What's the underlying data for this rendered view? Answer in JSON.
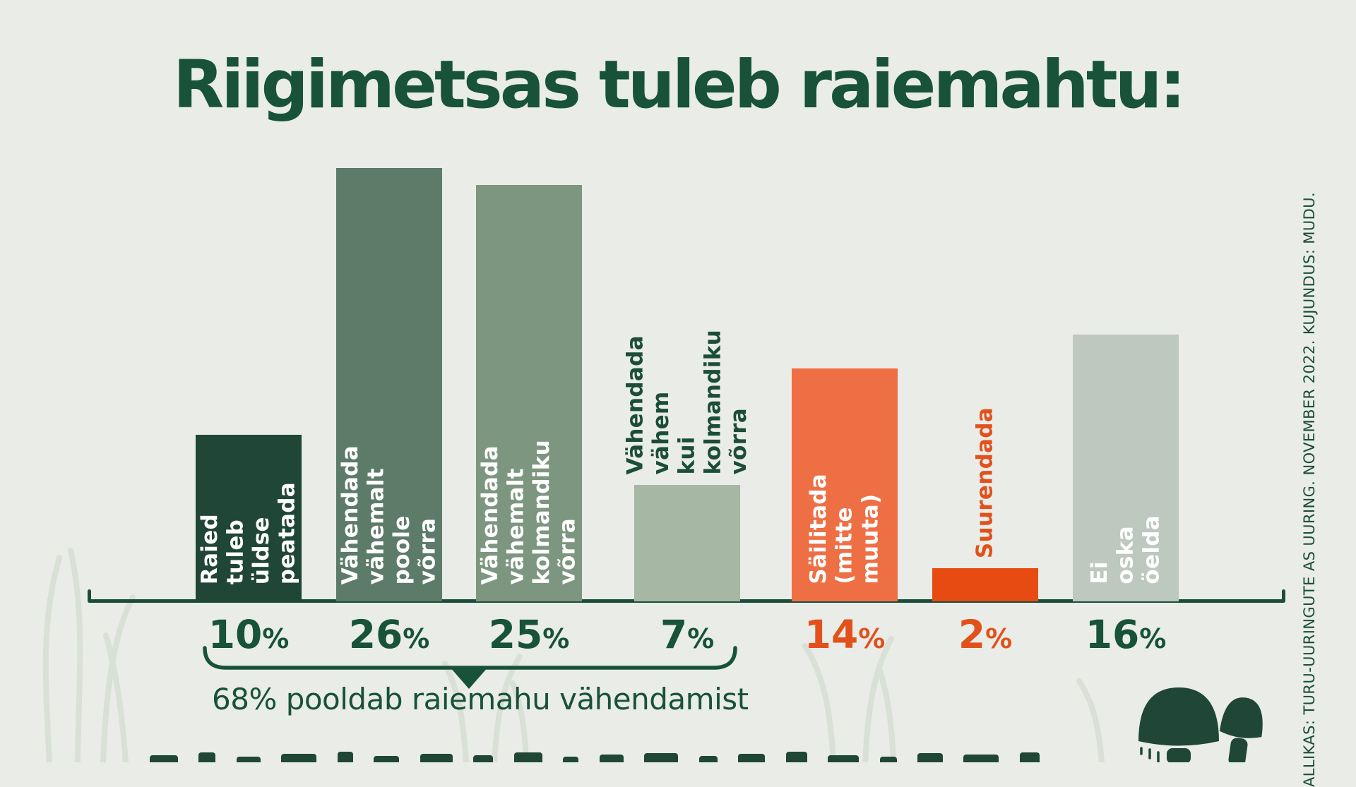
{
  "title": "Riigimetsas tuleb raiemahtu:",
  "source_note": "ALLIKAS: TURU-UURINGUTE AS UURING. NOVEMBER 2022. KUJUNDUS: MUDU.",
  "colors": {
    "background": "#e9ece7",
    "dark_green": "#1b4d3a",
    "title_green": "#175239",
    "orange_accent": "#e2511b",
    "grass": "#d7ded3",
    "mushroom": "#1f4636"
  },
  "chart_data": {
    "type": "bar",
    "title": "Riigimetsas tuleb raiemahtu:",
    "unit": "%",
    "ylim": [
      0,
      30
    ],
    "gridlines": false,
    "legend": "none",
    "categories": [
      "Raied tuleb üldse peatada",
      "Vähendada vähemalt poole võrra",
      "Vähendada vähemalt kolmandiku võrra",
      "Vähendada vähem kui kolmandiku võrra",
      "Säilitada (mitte muuta)",
      "Suurendada",
      "Ei oska öelda"
    ],
    "values": [
      10,
      26,
      25,
      7,
      14,
      2,
      16
    ],
    "bars": [
      {
        "label": "Raied\ntuleb üldse\npeatada",
        "value": 10,
        "value_text": "10",
        "suffix": "%",
        "color": "#1f4636",
        "label_color": "#ffffff",
        "label_position": "inside",
        "value_color": "#175239"
      },
      {
        "label": "Vähendada vähemalt\npoole võrra",
        "value": 26,
        "value_text": "26",
        "suffix": "%",
        "color": "#5c7b69",
        "label_color": "#ffffff",
        "label_position": "inside",
        "value_color": "#175239"
      },
      {
        "label": "Vähendada vähemalt\nkolmandiku võrra",
        "value": 25,
        "value_text": "25",
        "suffix": "%",
        "color": "#7d9680",
        "label_color": "#ffffff",
        "label_position": "inside",
        "value_color": "#175239"
      },
      {
        "label": "Vähendada vähem\nkui kolmandiku võrra",
        "value": 7,
        "value_text": "7",
        "suffix": "%",
        "color": "#a6b7a4",
        "label_color": "#1b4d3a",
        "label_position": "above",
        "value_color": "#175239"
      },
      {
        "label": "Säilitada\n(mitte muuta)",
        "value": 14,
        "value_text": "14",
        "suffix": "%",
        "color": "#ef6f45",
        "label_color": "#ffffff",
        "label_position": "inside",
        "value_color": "#e2511b"
      },
      {
        "label": "Suurendada",
        "value": 2,
        "value_text": "2",
        "suffix": "%",
        "color": "#e74b11",
        "label_color": "#e2511b",
        "label_position": "above",
        "value_color": "#e2511b"
      },
      {
        "label": "Ei oska öelda",
        "value": 16,
        "value_text": "16",
        "suffix": "%",
        "color": "#bdc8be",
        "label_color": "#ffffff",
        "label_position": "inside",
        "value_color": "#175239"
      }
    ],
    "annotation": {
      "label": "68% pooldab raiemahu vähendamist",
      "covers_first_n_bars": 4
    }
  }
}
